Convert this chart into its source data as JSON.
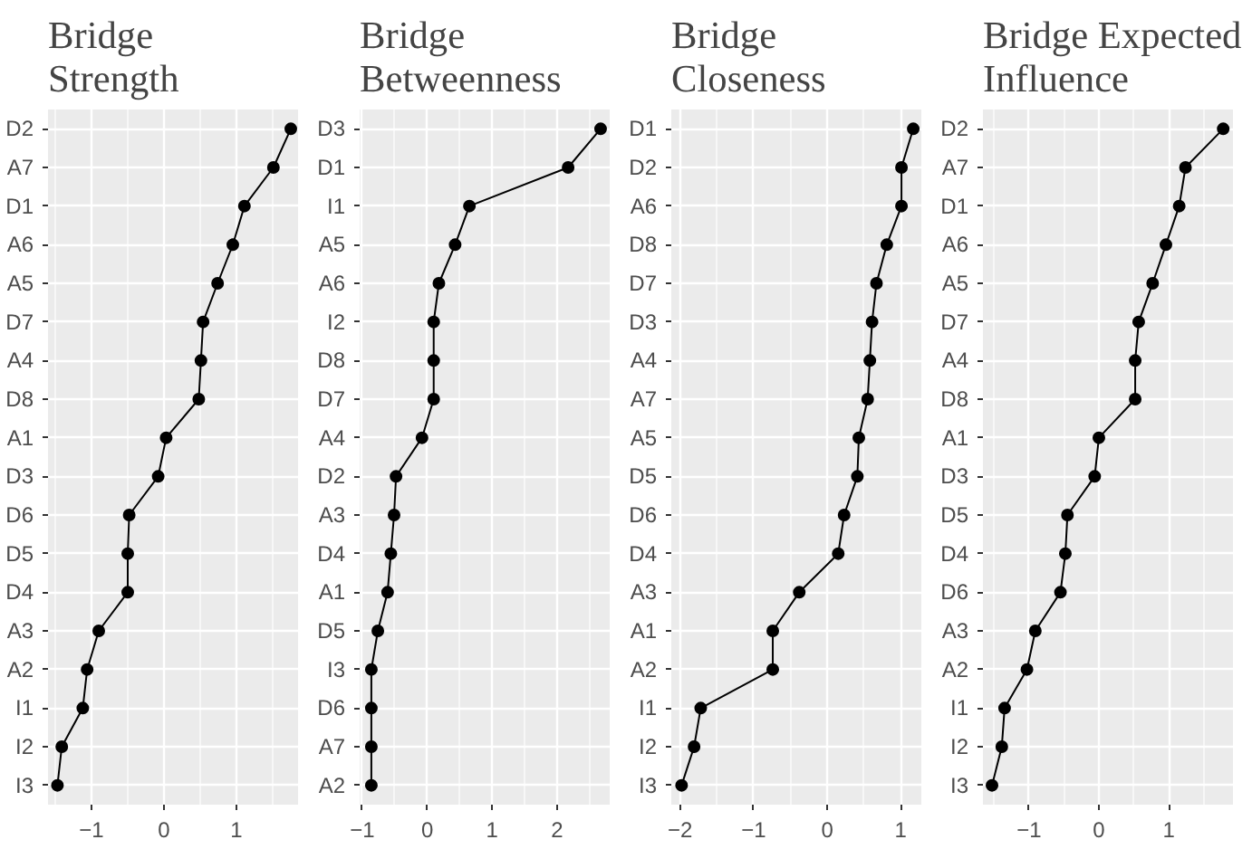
{
  "chart_data": [
    {
      "type": "line",
      "orientation": "horizontal",
      "title": "Bridge\nStrength",
      "marker": "circle",
      "grid": true,
      "categories": [
        "D2",
        "A7",
        "D1",
        "A6",
        "A5",
        "D7",
        "A4",
        "D8",
        "A1",
        "D3",
        "D6",
        "D5",
        "D4",
        "A3",
        "A2",
        "I1",
        "I2",
        "I3"
      ],
      "series": [
        {
          "color": "#000000",
          "values": [
            1.75,
            1.51,
            1.11,
            0.95,
            0.74,
            0.54,
            0.51,
            0.48,
            0.03,
            -0.08,
            -0.48,
            -0.5,
            -0.5,
            -0.9,
            -1.06,
            -1.12,
            -1.41,
            -1.47
          ]
        }
      ],
      "xlim": [
        -1.6,
        1.85
      ],
      "xticks": [
        -1,
        0,
        1
      ]
    },
    {
      "type": "line",
      "orientation": "horizontal",
      "title": "Bridge\nBetweenness",
      "marker": "circle",
      "grid": true,
      "categories": [
        "D3",
        "D1",
        "I1",
        "A5",
        "A6",
        "I2",
        "D8",
        "D7",
        "A4",
        "D2",
        "A3",
        "D4",
        "A1",
        "D5",
        "I3",
        "D6",
        "A7",
        "A2"
      ],
      "series": [
        {
          "color": "#000000",
          "values": [
            2.67,
            2.17,
            0.65,
            0.43,
            0.18,
            0.1,
            0.1,
            0.1,
            -0.08,
            -0.48,
            -0.51,
            -0.56,
            -0.61,
            -0.76,
            -0.86,
            -0.86,
            -0.86,
            -0.86
          ]
        }
      ],
      "xlim": [
        -1.04,
        2.81
      ],
      "xticks": [
        -1,
        0,
        1,
        2
      ]
    },
    {
      "type": "line",
      "orientation": "horizontal",
      "title": "Bridge\nCloseness",
      "marker": "circle",
      "grid": true,
      "categories": [
        "D1",
        "D2",
        "A6",
        "D8",
        "D7",
        "D3",
        "A4",
        "A7",
        "A5",
        "D5",
        "D6",
        "D4",
        "A3",
        "A1",
        "A2",
        "I1",
        "I2",
        "I3"
      ],
      "series": [
        {
          "color": "#000000",
          "values": [
            1.17,
            1.01,
            1.01,
            0.81,
            0.67,
            0.61,
            0.58,
            0.55,
            0.43,
            0.41,
            0.23,
            0.15,
            -0.38,
            -0.74,
            -0.74,
            -1.72,
            -1.81,
            -1.98
          ]
        }
      ],
      "xlim": [
        -2.12,
        1.28
      ],
      "xticks": [
        -2,
        -1,
        0,
        1
      ]
    },
    {
      "type": "line",
      "orientation": "horizontal",
      "title": "Bridge Expected\nInfluence",
      "marker": "circle",
      "grid": true,
      "categories": [
        "D2",
        "A7",
        "D1",
        "A6",
        "A5",
        "D7",
        "A4",
        "D8",
        "A1",
        "D3",
        "D5",
        "D4",
        "D6",
        "A3",
        "A2",
        "I1",
        "I2",
        "I3"
      ],
      "series": [
        {
          "color": "#000000",
          "values": [
            1.78,
            1.24,
            1.15,
            0.96,
            0.77,
            0.57,
            0.52,
            0.52,
            0.0,
            -0.06,
            -0.45,
            -0.48,
            -0.55,
            -0.91,
            -1.03,
            -1.35,
            -1.39,
            -1.53
          ]
        }
      ],
      "xlim": [
        -1.66,
        1.92
      ],
      "xticks": [
        -1,
        0,
        1
      ]
    }
  ]
}
